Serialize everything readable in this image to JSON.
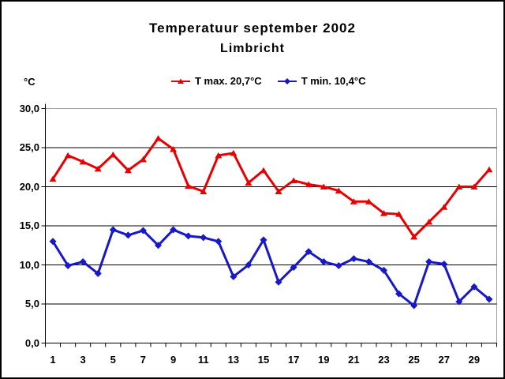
{
  "title": {
    "line1": "Temperatuur september 2002",
    "line2": "Limbricht"
  },
  "legend": {
    "tmax": {
      "label": "T max. 20,7°C",
      "marker": "triangle"
    },
    "tmin": {
      "label": "T min. 10,4°C",
      "marker": "diamond"
    }
  },
  "axes": {
    "y_unit": "°C",
    "y_tick_labels": [
      "30,0",
      "25,0",
      "20,0",
      "15,0",
      "10,0",
      "5,0",
      "0,0"
    ],
    "y_tick_values": [
      30,
      25,
      20,
      15,
      10,
      5,
      0
    ],
    "x_tick_label_days": [
      1,
      3,
      5,
      7,
      9,
      11,
      13,
      15,
      17,
      19,
      21,
      23,
      25,
      27,
      29
    ]
  },
  "colors": {
    "tmax": "#e80000",
    "tmin": "#1818c8",
    "grid": "#000000",
    "plot_border": "#9c9c9c",
    "axis": "#000000",
    "background": "#ffffff"
  },
  "chart_data": {
    "type": "line",
    "title": "Temperatuur september 2002",
    "subtitle": "Limbricht",
    "ylabel": "°C",
    "xlabel": "",
    "ylim": [
      0,
      30
    ],
    "ytick_step": 5,
    "grid": "horizontal",
    "legend_position": "top-center",
    "x": [
      1,
      2,
      3,
      4,
      5,
      6,
      7,
      8,
      9,
      10,
      11,
      12,
      13,
      14,
      15,
      16,
      17,
      18,
      19,
      20,
      21,
      22,
      23,
      24,
      25,
      26,
      27,
      28,
      29,
      30
    ],
    "series": [
      {
        "name": "T max. 20,7°C",
        "mean_shown": "20,7°C",
        "marker": "triangle",
        "values": [
          21.0,
          24.0,
          23.2,
          22.3,
          24.1,
          22.1,
          23.5,
          26.2,
          24.8,
          20.1,
          19.4,
          24.0,
          24.3,
          20.5,
          22.1,
          19.4,
          20.8,
          20.3,
          20.0,
          19.5,
          18.1,
          18.1,
          16.6,
          16.5,
          13.6,
          15.5,
          17.4,
          20.0,
          20.0,
          22.2
        ]
      },
      {
        "name": "T min. 10,4°C",
        "mean_shown": "10,4°C",
        "marker": "diamond",
        "values": [
          13.0,
          9.9,
          10.4,
          8.9,
          14.5,
          13.8,
          14.4,
          12.5,
          14.5,
          13.7,
          13.5,
          13.0,
          8.5,
          10.0,
          13.2,
          7.8,
          9.7,
          11.7,
          10.4,
          9.9,
          10.8,
          10.4,
          9.3,
          6.3,
          4.8,
          10.4,
          10.1,
          5.3,
          7.2,
          5.6
        ]
      }
    ]
  }
}
